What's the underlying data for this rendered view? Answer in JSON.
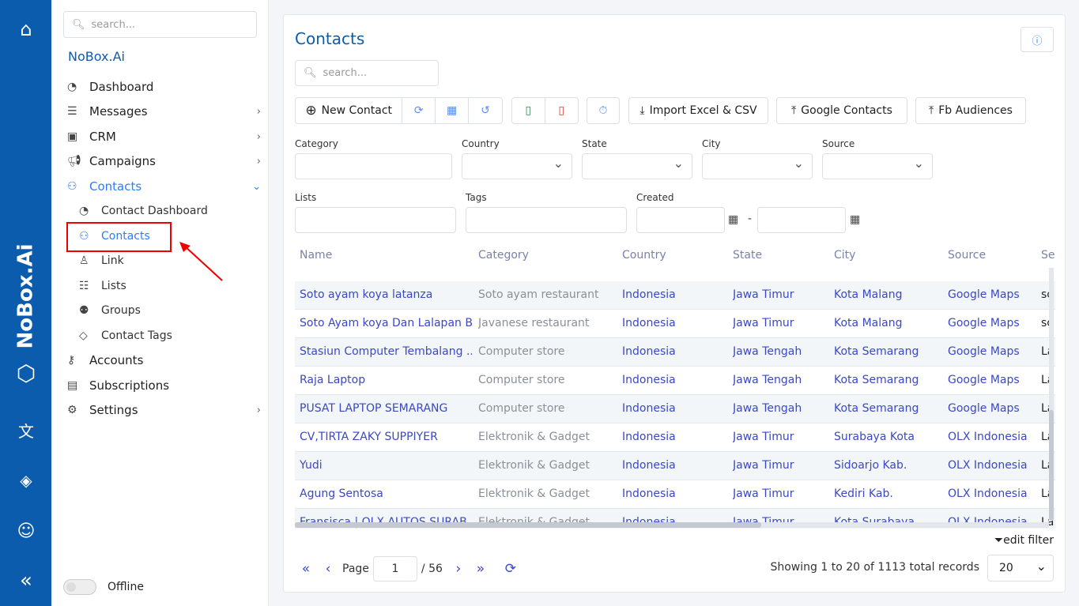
{
  "rail": {
    "brand": "NoBox.Ai",
    "icons": [
      "home-icon",
      "logo-cube-icon",
      "translate-icon",
      "paint-bucket-icon",
      "user-icon",
      "collapse-icon"
    ]
  },
  "sidebar": {
    "search_placeholder": "search...",
    "org": "NoBox.Ai",
    "items": [
      {
        "label": "Dashboard"
      },
      {
        "label": "Messages"
      },
      {
        "label": "CRM"
      },
      {
        "label": "Campaigns"
      },
      {
        "label": "Contacts"
      },
      {
        "label": "Contact Dashboard"
      },
      {
        "label": "Contacts"
      },
      {
        "label": "Link"
      },
      {
        "label": "Lists"
      },
      {
        "label": "Groups"
      },
      {
        "label": "Contact Tags"
      },
      {
        "label": "Accounts"
      },
      {
        "label": "Subscriptions"
      },
      {
        "label": "Settings"
      }
    ],
    "status": "Offline"
  },
  "main": {
    "title": "Contacts",
    "search_placeholder": "search...",
    "toolbar": {
      "new_contact": "New Contact",
      "import": "Import Excel & CSV",
      "google": "Google Contacts",
      "fb": "Fb Audiences"
    },
    "filters": {
      "category": "Category",
      "country": "Country",
      "state": "State",
      "city": "City",
      "source": "Source",
      "lists": "Lists",
      "tags": "Tags",
      "created": "Created",
      "date_sep": "-"
    },
    "table": {
      "columns": [
        "Name",
        "Category",
        "Country",
        "State",
        "City",
        "Source",
        "Se"
      ],
      "rows": [
        [
          "Soto ayam koya latanza",
          "Soto ayam restaurant",
          "Indonesia",
          "Jawa Timur",
          "Kota Malang",
          "Google Maps",
          "sc"
        ],
        [
          "Soto Ayam koya Dan Lalapan B...",
          "Javanese restaurant",
          "Indonesia",
          "Jawa Timur",
          "Kota Malang",
          "Google Maps",
          "sc"
        ],
        [
          "Stasiun Computer Tembalang ...",
          "Computer store",
          "Indonesia",
          "Jawa Tengah",
          "Kota Semarang",
          "Google Maps",
          "La"
        ],
        [
          "Raja Laptop",
          "Computer store",
          "Indonesia",
          "Jawa Tengah",
          "Kota Semarang",
          "Google Maps",
          "La"
        ],
        [
          "PUSAT LAPTOP SEMARANG",
          "Computer store",
          "Indonesia",
          "Jawa Tengah",
          "Kota Semarang",
          "Google Maps",
          "La"
        ],
        [
          "CV,TIRTA ZAKY SUPPIYER",
          "Elektronik & Gadget",
          "Indonesia",
          "Jawa Timur",
          "Surabaya Kota",
          "OLX Indonesia",
          "La"
        ],
        [
          "Yudi",
          "Elektronik & Gadget",
          "Indonesia",
          "Jawa Timur",
          "Sidoarjo Kab.",
          "OLX Indonesia",
          "La"
        ],
        [
          "Agung Sentosa",
          "Elektronik & Gadget",
          "Indonesia",
          "Jawa Timur",
          "Kediri Kab.",
          "OLX Indonesia",
          "La"
        ],
        [
          "Fransisca | OLX AUTOS SURAB...",
          "Elektronik & Gadget",
          "Indonesia",
          "Jawa Timur",
          "Kota Surabaya",
          "OLX Indonesia",
          "La"
        ]
      ]
    },
    "edit_filter": "edit filter",
    "pagination": {
      "page_label": "Page",
      "page": "1",
      "total_pages": "/ 56",
      "showing": "Showing 1 to 20 of 1113 total records",
      "page_size": "20"
    }
  }
}
